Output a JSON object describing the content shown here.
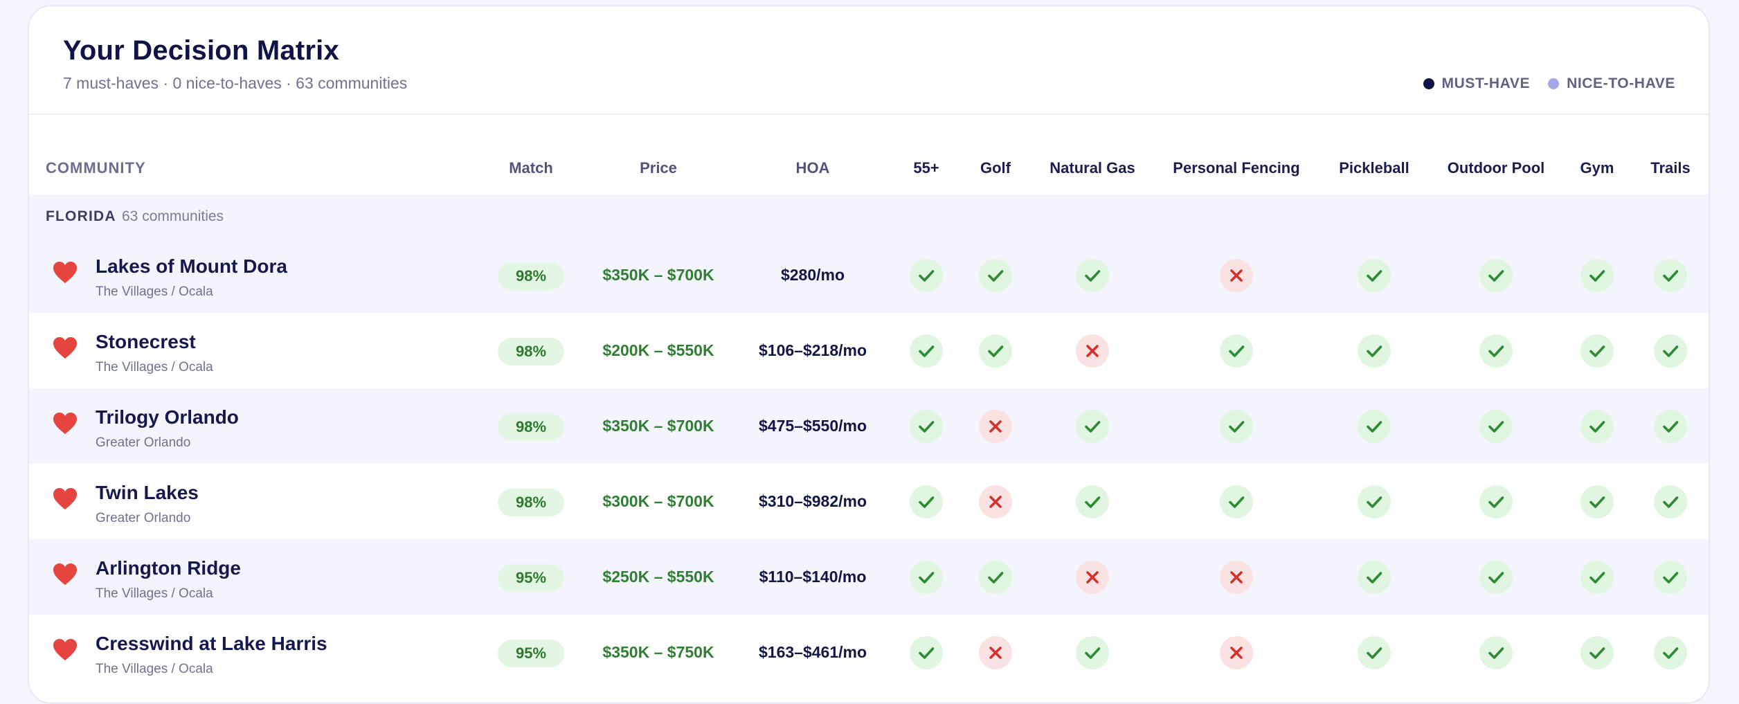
{
  "header": {
    "title": "Your Decision Matrix",
    "subtitle": "7 must-haves · 0 nice-to-haves · 63 communities",
    "legend": [
      {
        "label": "MUST-HAVE",
        "color": "#0f1348"
      },
      {
        "label": "NICE-TO-HAVE",
        "color": "#a6a6ea"
      }
    ]
  },
  "columns": {
    "community": "COMMUNITY",
    "match": "Match",
    "price": "Price",
    "hoa": "HOA",
    "features": [
      "55+",
      "Golf",
      "Natural Gas",
      "Personal Fencing",
      "Pickleball",
      "Outdoor Pool",
      "Gym",
      "Trails"
    ]
  },
  "group": {
    "name": "FLORIDA",
    "count": "63 communities"
  },
  "rows": [
    {
      "name": "Lakes of Mount Dora",
      "region": "The Villages / Ocala",
      "match": "98%",
      "price": "$350K – $700K",
      "hoa": "$280/mo",
      "features": [
        true,
        true,
        true,
        false,
        true,
        true,
        true,
        true
      ]
    },
    {
      "name": "Stonecrest",
      "region": "The Villages / Ocala",
      "match": "98%",
      "price": "$200K – $550K",
      "hoa": "$106–$218/mo",
      "features": [
        true,
        true,
        false,
        true,
        true,
        true,
        true,
        true
      ]
    },
    {
      "name": "Trilogy Orlando",
      "region": "Greater Orlando",
      "match": "98%",
      "price": "$350K – $700K",
      "hoa": "$475–$550/mo",
      "features": [
        true,
        false,
        true,
        true,
        true,
        true,
        true,
        true
      ]
    },
    {
      "name": "Twin Lakes",
      "region": "Greater Orlando",
      "match": "98%",
      "price": "$300K – $700K",
      "hoa": "$310–$982/mo",
      "features": [
        true,
        false,
        true,
        true,
        true,
        true,
        true,
        true
      ]
    },
    {
      "name": "Arlington Ridge",
      "region": "The Villages / Ocala",
      "match": "95%",
      "price": "$250K – $550K",
      "hoa": "$110–$140/mo",
      "features": [
        true,
        true,
        false,
        false,
        true,
        true,
        true,
        true
      ]
    },
    {
      "name": "Cresswind at Lake Harris",
      "region": "The Villages / Ocala",
      "match": "95%",
      "price": "$350K – $750K",
      "hoa": "$163–$461/mo",
      "features": [
        true,
        false,
        true,
        false,
        true,
        true,
        true,
        true
      ]
    }
  ],
  "colors": {
    "heart": "#e5443f",
    "check": "#2e8a35",
    "cross": "#d6302c"
  }
}
